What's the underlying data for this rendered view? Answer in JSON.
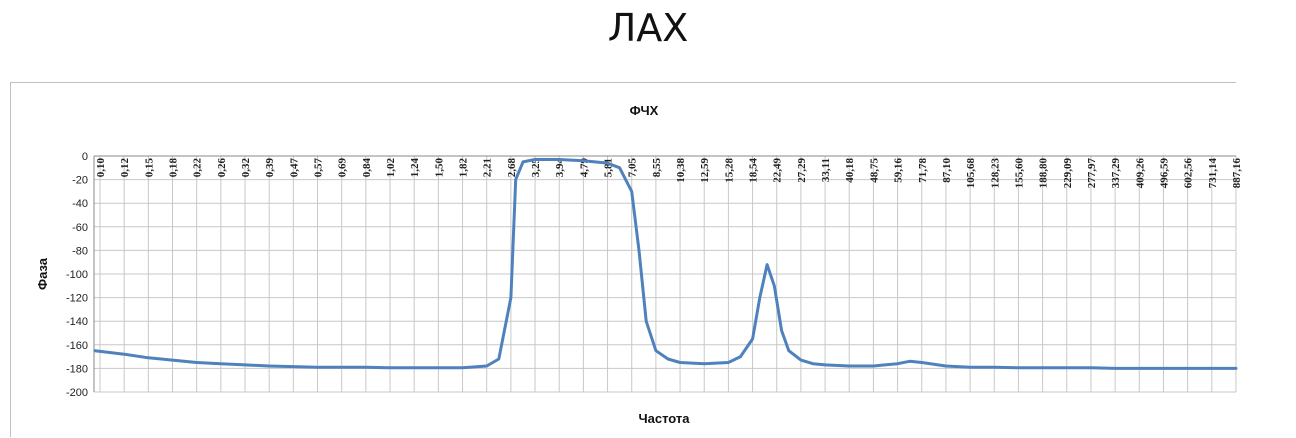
{
  "page": {
    "title": "ЛАХ"
  },
  "chart_data": {
    "type": "line",
    "title": "ФЧХ",
    "xlabel": "Частота",
    "ylabel": "Фаза",
    "ylim": [
      -200,
      0
    ],
    "y_ticks": [
      0,
      -20,
      -40,
      -60,
      -80,
      -100,
      -120,
      -140,
      -160,
      -180,
      -200
    ],
    "x_tick_labels": [
      "0,10",
      "0,12",
      "0,15",
      "0,18",
      "0,22",
      "0,26",
      "0,32",
      "0,39",
      "0,47",
      "0,57",
      "0,69",
      "0,84",
      "1,02",
      "1,24",
      "1,50",
      "1,82",
      "2,21",
      "2,68",
      "3,25",
      "3,94",
      "4,79",
      "5,81",
      "7,05",
      "8,55",
      "10,38",
      "12,59",
      "15,28",
      "18,54",
      "22,49",
      "27,29",
      "33,11",
      "40,18",
      "48,75",
      "59,16",
      "71,78",
      "87,10",
      "105,68",
      "128,23",
      "155,60",
      "188,80",
      "229,09",
      "277,97",
      "337,29",
      "409,26",
      "496,59",
      "602,56",
      "731,14",
      "887,16"
    ],
    "grid": true,
    "legend": "none",
    "line_color": "#4f81bd",
    "series": [
      {
        "name": "",
        "x": [
          0,
          1,
          2,
          3,
          4,
          5,
          6,
          7,
          8,
          9,
          10,
          11,
          12,
          13,
          14,
          15,
          16,
          16.5,
          17,
          17.2,
          17.5,
          18,
          18.5,
          19,
          20,
          21,
          21.5,
          22,
          22.3,
          22.6,
          23,
          23.5,
          24,
          25,
          26,
          26.5,
          27,
          27.3,
          27.6,
          27.9,
          28.2,
          28.5,
          29,
          29.5,
          30,
          31,
          32,
          33,
          33.5,
          34,
          35,
          36,
          37,
          38,
          39,
          40,
          41,
          42,
          43,
          44,
          45,
          46,
          47
        ],
        "values": [
          -165,
          -168,
          -171,
          -173,
          -175,
          -176,
          -177,
          -178,
          -178.5,
          -179,
          -179,
          -179,
          -179.5,
          -179.5,
          -179.5,
          -179.5,
          -178,
          -172,
          -120,
          -20,
          -5,
          -3,
          -3,
          -3,
          -4,
          -6,
          -10,
          -30,
          -80,
          -140,
          -165,
          -172,
          -175,
          -176,
          -175,
          -170,
          -155,
          -120,
          -92,
          -110,
          -148,
          -165,
          -173,
          -176,
          -177,
          -178,
          -178,
          -176,
          -174,
          -175,
          -178,
          -179,
          -179,
          -179.5,
          -179.5,
          -179.5,
          -179.5,
          -180,
          -180,
          -180,
          -180,
          -180,
          -180
        ]
      }
    ]
  }
}
